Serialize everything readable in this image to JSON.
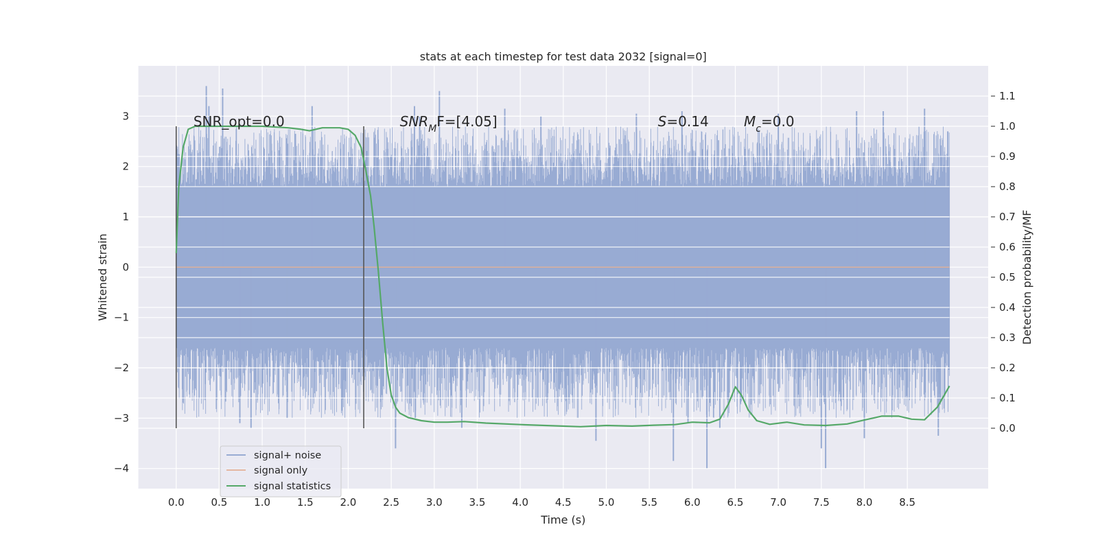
{
  "chart_data": {
    "type": "line",
    "title": "stats at each timestep for test data 2032 [signal=0]",
    "xlabel": "Time (s)",
    "ylabel": "Whitened strain",
    "y2label": "Detection probability/MF",
    "xlim": [
      -0.44,
      9.44
    ],
    "ylim": [
      -4.4,
      4.0
    ],
    "y2lim": [
      -0.2,
      1.2
    ],
    "x_ticks": [
      "0.0",
      "0.5",
      "1.0",
      "1.5",
      "2.0",
      "2.5",
      "3.0",
      "3.5",
      "4.0",
      "4.5",
      "5.0",
      "5.5",
      "6.0",
      "6.5",
      "7.0",
      "7.5",
      "8.0",
      "8.5"
    ],
    "y_ticks": [
      "−4",
      "−3",
      "−2",
      "−1",
      "0",
      "1",
      "2",
      "3"
    ],
    "y2_ticks": [
      "0.0",
      "0.1",
      "0.2",
      "0.3",
      "0.4",
      "0.5",
      "0.6",
      "0.7",
      "0.8",
      "0.9",
      "1.0",
      "1.1"
    ],
    "grid": true,
    "legend_position": "lower-left",
    "colors": {
      "background": "#eaeaf2",
      "noise": "#98abd3",
      "signal_only": "#dd8452",
      "statistics": "#55a868",
      "vline": "#555555",
      "grid": "#ffffff"
    },
    "annotations": [
      {
        "name": "snr-opt",
        "parts": [
          {
            "t": "SNR_opt=0.0",
            "i": false
          }
        ],
        "x": 0.2,
        "y2": 1.0
      },
      {
        "name": "snr-mf",
        "parts": [
          {
            "t": "SNR",
            "i": true
          },
          {
            "t": "M",
            "i": true,
            "sub": true
          },
          {
            "t": "F=[4.05]",
            "i": false
          }
        ],
        "x": 2.6,
        "y2": 1.0
      },
      {
        "name": "s-value",
        "parts": [
          {
            "t": "S",
            "i": true
          },
          {
            "t": "=0.14",
            "i": false
          }
        ],
        "x": 5.6,
        "y2": 1.0
      },
      {
        "name": "mc-value",
        "parts": [
          {
            "t": "M",
            "i": true
          },
          {
            "t": "c",
            "i": true,
            "sub": true
          },
          {
            "t": "=0.0",
            "i": false
          }
        ],
        "x": 6.6,
        "y2": 1.0
      }
    ],
    "vlines": [
      {
        "x": 0.0,
        "ymin": -3.2,
        "ymax": 2.8
      },
      {
        "x": 2.18,
        "ymin": -3.2,
        "ymax": 2.8
      }
    ],
    "series": [
      {
        "name": "signal+ noise",
        "kind": "dense noise band",
        "x_range": [
          0.0,
          8.99
        ],
        "envelope_abs": 1.6,
        "typical_max": 2.4,
        "typical_min": -2.6,
        "peaks_up": [
          {
            "x": 0.35,
            "y": 3.6
          },
          {
            "x": 0.54,
            "y": 3.55
          },
          {
            "x": 0.38,
            "y": 3.2
          },
          {
            "x": 1.58,
            "y": 3.2
          },
          {
            "x": 2.77,
            "y": 3.2
          },
          {
            "x": 2.83,
            "y": 3.0
          },
          {
            "x": 3.06,
            "y": 3.5
          },
          {
            "x": 3.82,
            "y": 3.15
          },
          {
            "x": 4.24,
            "y": 3.0
          },
          {
            "x": 5.35,
            "y": 3.05
          },
          {
            "x": 5.88,
            "y": 3.1
          },
          {
            "x": 7.0,
            "y": 3.05
          },
          {
            "x": 7.91,
            "y": 3.1
          },
          {
            "x": 8.22,
            "y": 3.1
          },
          {
            "x": 8.7,
            "y": 3.15
          },
          {
            "x": 8.97,
            "y": 2.7
          }
        ],
        "peaks_down": [
          {
            "x": 0.74,
            "y": -3.1
          },
          {
            "x": 0.87,
            "y": -3.2
          },
          {
            "x": 1.29,
            "y": -3.0
          },
          {
            "x": 2.55,
            "y": -3.6
          },
          {
            "x": 2.78,
            "y": -3.0
          },
          {
            "x": 3.32,
            "y": -3.2
          },
          {
            "x": 4.88,
            "y": -3.45
          },
          {
            "x": 5.78,
            "y": -3.85
          },
          {
            "x": 5.95,
            "y": -3.1
          },
          {
            "x": 6.17,
            "y": -4.0
          },
          {
            "x": 6.32,
            "y": -3.2
          },
          {
            "x": 7.55,
            "y": -4.0
          },
          {
            "x": 7.5,
            "y": -3.6
          },
          {
            "x": 8.0,
            "y": -3.4
          },
          {
            "x": 8.86,
            "y": -3.35
          }
        ]
      },
      {
        "name": "signal only",
        "x": [
          0.0,
          8.99
        ],
        "y": [
          0.0,
          0.0
        ]
      },
      {
        "name": "signal statistics",
        "axis": "right",
        "x": [
          0.0,
          0.03,
          0.08,
          0.14,
          0.22,
          0.35,
          0.6,
          1.0,
          1.3,
          1.45,
          1.55,
          1.7,
          1.9,
          2.0,
          2.08,
          2.15,
          2.2,
          2.26,
          2.3,
          2.35,
          2.4,
          2.45,
          2.5,
          2.55,
          2.6,
          2.7,
          2.85,
          3.0,
          3.15,
          3.35,
          3.6,
          4.0,
          4.4,
          4.7,
          5.0,
          5.3,
          5.55,
          5.8,
          6.0,
          6.2,
          6.32,
          6.42,
          6.5,
          6.57,
          6.65,
          6.75,
          6.9,
          7.1,
          7.3,
          7.55,
          7.8,
          8.0,
          8.2,
          8.4,
          8.55,
          8.7,
          8.85,
          8.99
        ],
        "y": [
          0.58,
          0.8,
          0.93,
          0.99,
          1.0,
          1.0,
          1.0,
          1.0,
          0.995,
          0.99,
          0.985,
          0.995,
          0.995,
          0.99,
          0.97,
          0.93,
          0.86,
          0.77,
          0.67,
          0.52,
          0.35,
          0.2,
          0.11,
          0.07,
          0.05,
          0.035,
          0.025,
          0.02,
          0.02,
          0.022,
          0.017,
          0.012,
          0.008,
          0.005,
          0.009,
          0.007,
          0.01,
          0.012,
          0.02,
          0.018,
          0.03,
          0.08,
          0.137,
          0.11,
          0.06,
          0.025,
          0.013,
          0.02,
          0.011,
          0.009,
          0.014,
          0.027,
          0.04,
          0.04,
          0.03,
          0.028,
          0.07,
          0.14
        ]
      }
    ]
  }
}
